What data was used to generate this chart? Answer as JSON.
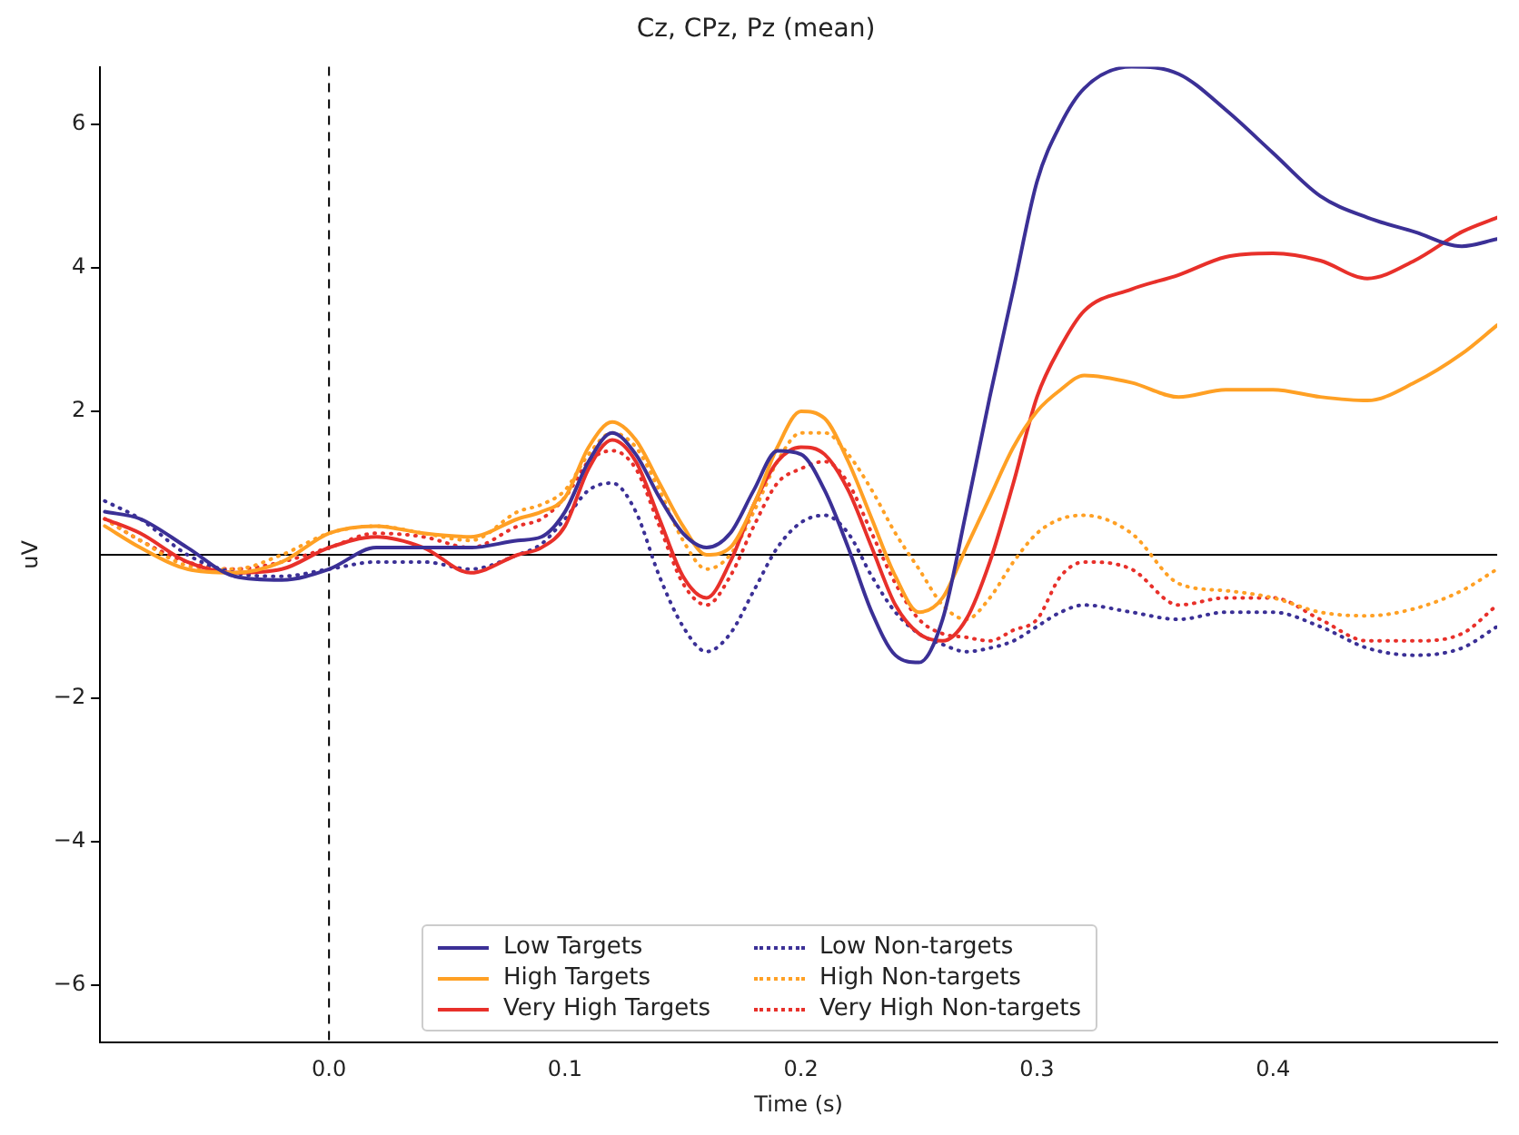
{
  "chart_data": {
    "type": "line",
    "title": "Cz, CPz, Pz (mean)",
    "xlabel": "Time (s)",
    "ylabel": "uV",
    "x": [
      -0.095,
      -0.08,
      -0.06,
      -0.04,
      -0.02,
      0,
      0.02,
      0.04,
      0.06,
      0.08,
      0.09,
      0.1,
      0.11,
      0.12,
      0.13,
      0.14,
      0.15,
      0.16,
      0.17,
      0.18,
      0.19,
      0.2,
      0.21,
      0.22,
      0.23,
      0.24,
      0.25,
      0.26,
      0.27,
      0.28,
      0.29,
      0.3,
      0.31,
      0.32,
      0.34,
      0.36,
      0.38,
      0.4,
      0.42,
      0.44,
      0.46,
      0.48,
      0.495
    ],
    "series": [
      {
        "name": "Low Targets",
        "color": "#3b3096",
        "line_style": "solid",
        "values": [
          0.6,
          0.5,
          0.1,
          -0.3,
          -0.35,
          -0.2,
          0.1,
          0.1,
          0.1,
          0.2,
          0.25,
          0.6,
          1.3,
          1.7,
          1.4,
          0.8,
          0.3,
          0.1,
          0.3,
          0.9,
          1.45,
          1.4,
          0.9,
          0.1,
          -0.8,
          -1.4,
          -1.5,
          -0.9,
          0.6,
          2.2,
          3.7,
          5.2,
          6.0,
          6.5,
          6.8,
          6.7,
          6.2,
          5.6,
          5.0,
          4.7,
          4.5,
          4.3,
          4.4
        ]
      },
      {
        "name": "High Targets",
        "color": "#ffa024",
        "line_style": "solid",
        "values": [
          0.4,
          0.1,
          -0.2,
          -0.25,
          -0.1,
          0.3,
          0.4,
          0.3,
          0.25,
          0.5,
          0.6,
          0.8,
          1.5,
          1.85,
          1.6,
          1.0,
          0.4,
          0.0,
          0.1,
          0.7,
          1.5,
          2.0,
          1.9,
          1.3,
          0.5,
          -0.3,
          -0.8,
          -0.6,
          0.1,
          0.8,
          1.5,
          2.0,
          2.3,
          2.5,
          2.4,
          2.2,
          2.3,
          2.3,
          2.2,
          2.15,
          2.4,
          2.8,
          3.2
        ]
      },
      {
        "name": "Very High Targets",
        "color": "#e8302a",
        "line_style": "solid",
        "values": [
          0.5,
          0.3,
          -0.1,
          -0.25,
          -0.2,
          0.1,
          0.25,
          0.1,
          -0.25,
          0.0,
          0.1,
          0.4,
          1.2,
          1.6,
          1.3,
          0.5,
          -0.3,
          -0.6,
          -0.1,
          0.7,
          1.3,
          1.5,
          1.4,
          0.9,
          0.1,
          -0.7,
          -1.1,
          -1.2,
          -0.9,
          -0.1,
          1.0,
          2.2,
          2.9,
          3.4,
          3.7,
          3.9,
          4.15,
          4.2,
          4.1,
          3.85,
          4.1,
          4.5,
          4.7
        ]
      },
      {
        "name": "Low Non-targets",
        "color": "#3b3096",
        "line_style": "dotted",
        "values": [
          0.75,
          0.5,
          0.0,
          -0.25,
          -0.3,
          -0.2,
          -0.1,
          -0.1,
          -0.2,
          0.0,
          0.15,
          0.5,
          0.9,
          1.0,
          0.6,
          -0.3,
          -1.0,
          -1.35,
          -1.1,
          -0.5,
          0.1,
          0.45,
          0.55,
          0.3,
          -0.3,
          -0.8,
          -1.1,
          -1.25,
          -1.35,
          -1.3,
          -1.2,
          -1.0,
          -0.8,
          -0.7,
          -0.8,
          -0.9,
          -0.8,
          -0.8,
          -1.0,
          -1.3,
          -1.4,
          -1.3,
          -1.0
        ]
      },
      {
        "name": "High Non-targets",
        "color": "#ffa024",
        "line_style": "dotted",
        "values": [
          0.5,
          0.2,
          -0.15,
          -0.2,
          0.0,
          0.3,
          0.4,
          0.3,
          0.2,
          0.6,
          0.7,
          0.9,
          1.4,
          1.7,
          1.5,
          0.9,
          0.2,
          -0.2,
          0.0,
          0.6,
          1.3,
          1.7,
          1.7,
          1.4,
          0.9,
          0.3,
          -0.2,
          -0.7,
          -0.9,
          -0.6,
          -0.1,
          0.3,
          0.5,
          0.55,
          0.3,
          -0.4,
          -0.5,
          -0.6,
          -0.8,
          -0.85,
          -0.75,
          -0.5,
          -0.2
        ]
      },
      {
        "name": "Very High Non-targets",
        "color": "#e8302a",
        "line_style": "dotted",
        "values": [
          0.5,
          0.2,
          -0.1,
          -0.2,
          -0.1,
          0.1,
          0.3,
          0.25,
          0.1,
          0.4,
          0.5,
          0.8,
          1.3,
          1.45,
          1.2,
          0.4,
          -0.4,
          -0.7,
          -0.3,
          0.4,
          1.0,
          1.2,
          1.3,
          1.0,
          0.3,
          -0.4,
          -0.9,
          -1.1,
          -1.15,
          -1.2,
          -1.05,
          -0.9,
          -0.3,
          -0.1,
          -0.2,
          -0.7,
          -0.6,
          -0.6,
          -0.9,
          -1.2,
          -1.2,
          -1.1,
          -0.7
        ]
      }
    ],
    "xlim": [
      -0.097,
      0.495
    ],
    "xticks": [
      {
        "value": 0,
        "label": "0.0"
      },
      0.1,
      0.2,
      0.3,
      0.4
    ],
    "ylim": [
      -6.8,
      6.8
    ],
    "yticks": [
      {
        "value": -6,
        "label": "−6"
      },
      {
        "value": -4,
        "label": "−4"
      },
      {
        "value": -2,
        "label": "−2"
      },
      2,
      4,
      6
    ],
    "ref_lines": [
      {
        "axis": "y",
        "value": 0,
        "color": "#000000",
        "line_style": "solid"
      },
      {
        "axis": "x",
        "value": 0,
        "color": "#000000",
        "line_style": "dashed"
      }
    ],
    "grid": false,
    "legend": "bottom"
  }
}
